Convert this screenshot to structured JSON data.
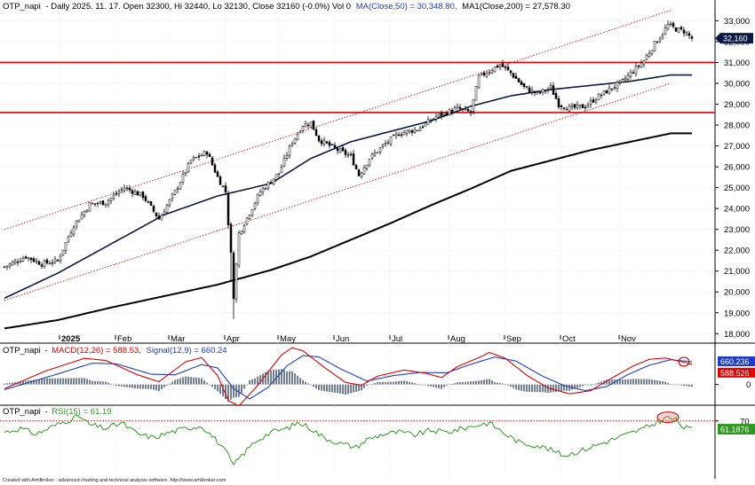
{
  "chart_data": [
    {
      "type": "candlestick",
      "panel": "price",
      "header": {
        "symbol": "OTP_napi",
        "info": "- Daily 2025. 11. 17. Open 32300, Hi 32440, Lo 32130, Close 32160 (-0.0%) Vol 0",
        "ma50": "MA(Close,50) = 30,348.80,",
        "ma200": "MA1(Close,200) = 27,578.30"
      },
      "ylim": [
        17800,
        33400
      ],
      "yticks": [
        18000,
        19000,
        20000,
        21000,
        22000,
        23000,
        24000,
        25000,
        26000,
        27000,
        28000,
        29000,
        30000,
        31000,
        32000,
        33000
      ],
      "ytick_labels": [
        "18,000",
        "19,000",
        "20,000",
        "21,000",
        "22,000",
        "23,000",
        "24,000",
        "25,000",
        "26,000",
        "27,000",
        "28,000",
        "29,000",
        "30,000",
        "31,000",
        "32,000",
        "33,000"
      ],
      "month_labels": [
        "2025",
        "Feb",
        "Mar",
        "Apr",
        "May",
        "Jun",
        "Jul",
        "Aug",
        "Sep",
        "Oct",
        "Nov"
      ],
      "month_start_index": [
        21,
        42,
        62,
        83,
        103,
        124,
        145,
        167,
        188,
        209,
        231
      ],
      "last_close_label": "32,160",
      "horizontal_levels": [
        31000,
        28600
      ],
      "channel": {
        "upper": [
          [
            0,
            23000
          ],
          [
            250,
            33500
          ]
        ],
        "lower": [
          [
            0,
            19600
          ],
          [
            250,
            30000
          ]
        ]
      },
      "ma50_anchors": [
        [
          0,
          19700
        ],
        [
          20,
          20900
        ],
        [
          40,
          22300
        ],
        [
          60,
          23700
        ],
        [
          80,
          24600
        ],
        [
          100,
          25200
        ],
        [
          115,
          26400
        ],
        [
          130,
          27200
        ],
        [
          145,
          27700
        ],
        [
          160,
          28200
        ],
        [
          175,
          28900
        ],
        [
          190,
          29400
        ],
        [
          205,
          29700
        ],
        [
          220,
          29900
        ],
        [
          235,
          30100
        ],
        [
          250,
          30400
        ]
      ],
      "ma200_anchors": [
        [
          0,
          18250
        ],
        [
          20,
          18650
        ],
        [
          40,
          19250
        ],
        [
          60,
          19800
        ],
        [
          80,
          20350
        ],
        [
          100,
          21050
        ],
        [
          115,
          21700
        ],
        [
          130,
          22500
        ],
        [
          145,
          23300
        ],
        [
          160,
          24150
        ],
        [
          175,
          24950
        ],
        [
          190,
          25800
        ],
        [
          205,
          26300
        ],
        [
          220,
          26800
        ],
        [
          235,
          27200
        ],
        [
          250,
          27600
        ]
      ],
      "close_anchors": [
        [
          0,
          21200
        ],
        [
          8,
          21700
        ],
        [
          14,
          21350
        ],
        [
          20,
          21500
        ],
        [
          26,
          23200
        ],
        [
          32,
          24200
        ],
        [
          38,
          24300
        ],
        [
          45,
          25000
        ],
        [
          52,
          24600
        ],
        [
          58,
          23500
        ],
        [
          64,
          24800
        ],
        [
          70,
          26300
        ],
        [
          76,
          26700
        ],
        [
          80,
          25500
        ],
        [
          83,
          24800
        ],
        [
          85,
          21800
        ],
        [
          86,
          19800
        ],
        [
          88,
          22800
        ],
        [
          92,
          23800
        ],
        [
          96,
          24800
        ],
        [
          103,
          25700
        ],
        [
          108,
          27200
        ],
        [
          112,
          28000
        ],
        [
          115,
          28100
        ],
        [
          118,
          27300
        ],
        [
          125,
          26800
        ],
        [
          130,
          26500
        ],
        [
          133,
          25600
        ],
        [
          137,
          26400
        ],
        [
          142,
          27000
        ],
        [
          148,
          27600
        ],
        [
          155,
          27800
        ],
        [
          162,
          28400
        ],
        [
          170,
          28800
        ],
        [
          175,
          28600
        ],
        [
          178,
          30300
        ],
        [
          182,
          30600
        ],
        [
          186,
          30900
        ],
        [
          190,
          30500
        ],
        [
          195,
          29800
        ],
        [
          200,
          29500
        ],
        [
          205,
          29800
        ],
        [
          208,
          29000
        ],
        [
          212,
          28800
        ],
        [
          218,
          28900
        ],
        [
          222,
          29300
        ],
        [
          227,
          29700
        ],
        [
          232,
          30100
        ],
        [
          236,
          30600
        ],
        [
          240,
          31100
        ],
        [
          244,
          31900
        ],
        [
          247,
          32400
        ],
        [
          249,
          32800
        ],
        [
          252,
          32600
        ],
        [
          255,
          32500
        ],
        [
          258,
          32160
        ]
      ]
    },
    {
      "type": "line",
      "panel": "macd",
      "header": {
        "symbol": "OTP_napi",
        "dash": "-",
        "macd": "MACD(12,26) = 588.53,",
        "signal": "Signal(12,9) = 660.24"
      },
      "ylim": [
        -550,
        1150
      ],
      "yticks": [
        0
      ],
      "ytick_labels": [
        "0"
      ],
      "value_tags": [
        "660.236",
        "588.526"
      ],
      "macd_anchors": [
        [
          0,
          -120
        ],
        [
          15,
          380
        ],
        [
          30,
          760
        ],
        [
          38,
          700
        ],
        [
          50,
          280
        ],
        [
          58,
          80
        ],
        [
          68,
          660
        ],
        [
          74,
          780
        ],
        [
          80,
          260
        ],
        [
          84,
          -470
        ],
        [
          88,
          -620
        ],
        [
          94,
          -120
        ],
        [
          100,
          470
        ],
        [
          104,
          860
        ],
        [
          108,
          1070
        ],
        [
          112,
          980
        ],
        [
          120,
          500
        ],
        [
          128,
          60
        ],
        [
          134,
          -20
        ],
        [
          140,
          240
        ],
        [
          150,
          420
        ],
        [
          158,
          330
        ],
        [
          164,
          200
        ],
        [
          170,
          520
        ],
        [
          178,
          780
        ],
        [
          182,
          930
        ],
        [
          188,
          760
        ],
        [
          196,
          270
        ],
        [
          204,
          -100
        ],
        [
          212,
          -270
        ],
        [
          220,
          -180
        ],
        [
          228,
          190
        ],
        [
          236,
          540
        ],
        [
          242,
          730
        ],
        [
          248,
          770
        ],
        [
          252,
          700
        ],
        [
          258,
          588
        ]
      ],
      "signal_anchors": [
        [
          0,
          -150
        ],
        [
          18,
          260
        ],
        [
          33,
          620
        ],
        [
          42,
          600
        ],
        [
          55,
          300
        ],
        [
          64,
          280
        ],
        [
          74,
          580
        ],
        [
          80,
          480
        ],
        [
          86,
          -120
        ],
        [
          92,
          -420
        ],
        [
          99,
          -80
        ],
        [
          106,
          540
        ],
        [
          112,
          840
        ],
        [
          118,
          800
        ],
        [
          126,
          460
        ],
        [
          136,
          100
        ],
        [
          146,
          260
        ],
        [
          156,
          350
        ],
        [
          166,
          340
        ],
        [
          174,
          560
        ],
        [
          184,
          800
        ],
        [
          192,
          680
        ],
        [
          202,
          240
        ],
        [
          210,
          -30
        ],
        [
          218,
          -180
        ],
        [
          226,
          -60
        ],
        [
          234,
          290
        ],
        [
          242,
          560
        ],
        [
          250,
          720
        ],
        [
          258,
          660
        ]
      ]
    },
    {
      "type": "line",
      "panel": "rsi",
      "header": {
        "symbol": "OTP_napi",
        "dash": "-",
        "rsi": "RSI(15) = 61.19"
      },
      "ylim": [
        10,
        85
      ],
      "yticks": [
        70
      ],
      "ytick_labels": [
        "70"
      ],
      "reference_level": 70,
      "value_tags": [
        "61.1876"
      ],
      "rsi_anchors": [
        [
          0,
          58
        ],
        [
          6,
          62
        ],
        [
          12,
          56
        ],
        [
          18,
          64
        ],
        [
          24,
          71
        ],
        [
          28,
          75
        ],
        [
          32,
          66
        ],
        [
          38,
          62
        ],
        [
          44,
          68
        ],
        [
          50,
          56
        ],
        [
          56,
          52
        ],
        [
          62,
          58
        ],
        [
          68,
          62
        ],
        [
          74,
          65
        ],
        [
          80,
          48
        ],
        [
          84,
          33
        ],
        [
          86,
          22
        ],
        [
          88,
          30
        ],
        [
          94,
          48
        ],
        [
          100,
          58
        ],
        [
          106,
          62
        ],
        [
          110,
          68
        ],
        [
          114,
          64
        ],
        [
          120,
          52
        ],
        [
          126,
          46
        ],
        [
          132,
          42
        ],
        [
          136,
          50
        ],
        [
          142,
          56
        ],
        [
          148,
          58
        ],
        [
          154,
          55
        ],
        [
          160,
          60
        ],
        [
          166,
          58
        ],
        [
          172,
          62
        ],
        [
          178,
          66
        ],
        [
          182,
          68
        ],
        [
          188,
          56
        ],
        [
          194,
          46
        ],
        [
          200,
          44
        ],
        [
          206,
          38
        ],
        [
          210,
          33
        ],
        [
          216,
          38
        ],
        [
          222,
          44
        ],
        [
          228,
          50
        ],
        [
          234,
          56
        ],
        [
          240,
          62
        ],
        [
          246,
          70
        ],
        [
          249,
          74
        ],
        [
          252,
          71
        ],
        [
          255,
          63
        ],
        [
          258,
          61.19
        ]
      ]
    }
  ],
  "footer": {
    "credit": "Created with AmiBroker - advanced charting and technical analysis software. http://www.amibroker.com"
  },
  "colors": {
    "up_candle": "#ffffff",
    "down_candle": "#000000",
    "candle_wick": "#000000",
    "ma50": "#0a1a44",
    "ma200": "#000000",
    "horizontal_level": "#e00000",
    "channel": "#e02020",
    "macd_line": "#e00000",
    "signal_line": "#1e3cc8",
    "macd_histogram": "#34466e",
    "rsi_line": "#2f9a20",
    "rsi_reference": "#c00000",
    "tag_signal_bg": "#1e3cc8",
    "tag_macd_bg": "#e00000",
    "tag_rsi_bg": "#2f9a20",
    "tag_price_bg": "#0a1a44",
    "highlight_ellipse": "#c00000"
  }
}
